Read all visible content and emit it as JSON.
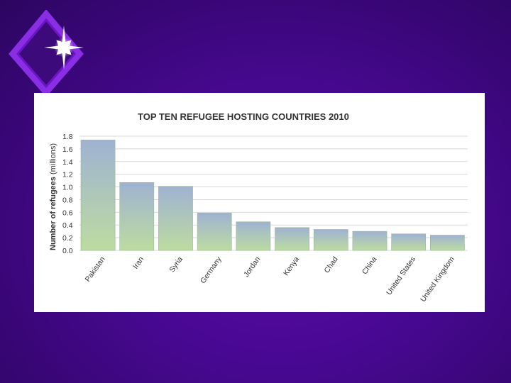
{
  "colors": {
    "background": "#46088f",
    "bar_top": "#9fb2d2",
    "bar_bottom": "#bcdca0",
    "logo": "#7a22d6"
  },
  "logo": {
    "icon": "diamond-sparkle-icon"
  },
  "chart_data": {
    "type": "bar",
    "title": "TOP TEN REFUGEE HOSTING COUNTRIES 2010",
    "ylabel_bold": "Number of refugees",
    "ylabel_rest": " (millions)",
    "xlabel": "",
    "ylim": [
      0,
      1.8
    ],
    "yticks": [
      "1.8",
      "1.6",
      "1.4",
      "1.2",
      "1.0",
      "0.8",
      "0.6",
      "0.4",
      "0.2",
      "0.0"
    ],
    "categories": [
      "Pakistan",
      "Iran",
      "Syria",
      "Germany",
      "Jordan",
      "Kenya",
      "Chad",
      "China",
      "United States",
      "United Kingdom"
    ],
    "values": [
      1.74,
      1.07,
      1.01,
      0.59,
      0.45,
      0.36,
      0.33,
      0.3,
      0.26,
      0.24
    ],
    "grid": true,
    "legend": "none"
  }
}
